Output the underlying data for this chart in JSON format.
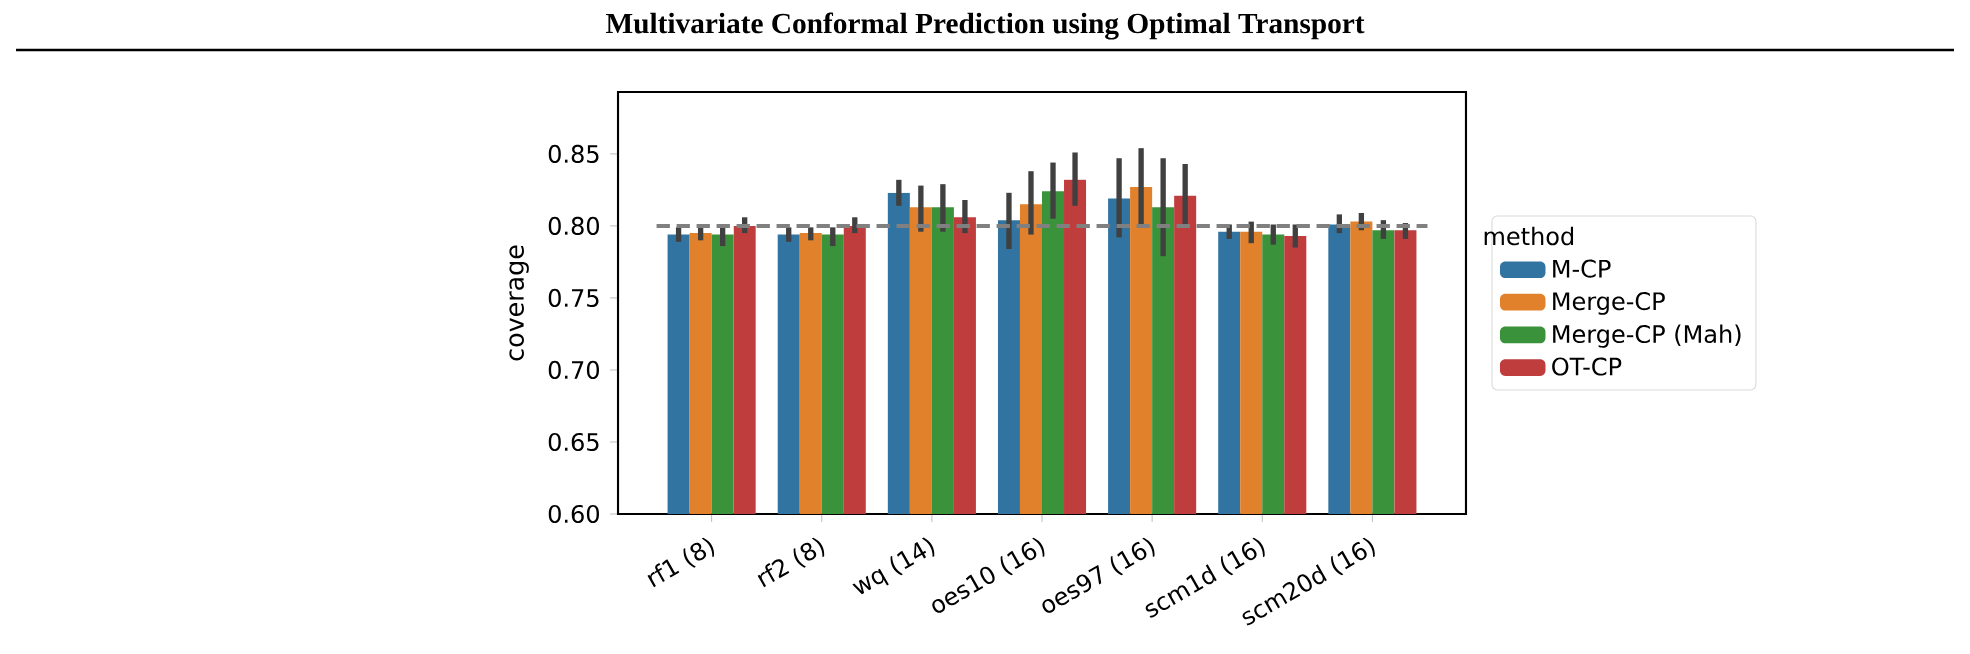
{
  "chart_data": {
    "type": "bar",
    "title": "Multivariate Conformal Prediction using Optimal Transport",
    "ylabel": "coverage",
    "legend_title": "method",
    "legend": "right",
    "categories": [
      "rf1 (8)",
      "rf2 (8)",
      "wq (14)",
      "oes10 (16)",
      "oes97 (16)",
      "scm1d (16)",
      "scm20d (16)"
    ],
    "series": [
      {
        "name": "M-CP",
        "color": "#3274a1",
        "values": [
          0.794,
          0.794,
          0.823,
          0.804,
          0.819,
          0.796,
          0.801
        ],
        "errors": [
          [
            0.789,
            0.799
          ],
          [
            0.789,
            0.799
          ],
          [
            0.814,
            0.832
          ],
          [
            0.784,
            0.823
          ],
          [
            0.792,
            0.847
          ],
          [
            0.791,
            0.801
          ],
          [
            0.795,
            0.808
          ]
        ]
      },
      {
        "name": "Merge-CP",
        "color": "#e1812c",
        "values": [
          0.795,
          0.795,
          0.813,
          0.815,
          0.827,
          0.796,
          0.803
        ],
        "errors": [
          [
            0.79,
            0.799
          ],
          [
            0.79,
            0.799
          ],
          [
            0.796,
            0.828
          ],
          [
            0.794,
            0.838
          ],
          [
            0.801,
            0.854
          ],
          [
            0.788,
            0.803
          ],
          [
            0.797,
            0.809
          ]
        ]
      },
      {
        "name": "Merge-CP (Mah)",
        "color": "#3a923a",
        "values": [
          0.794,
          0.794,
          0.813,
          0.824,
          0.813,
          0.794,
          0.797
        ],
        "errors": [
          [
            0.786,
            0.799
          ],
          [
            0.786,
            0.799
          ],
          [
            0.796,
            0.829
          ],
          [
            0.805,
            0.844
          ],
          [
            0.779,
            0.847
          ],
          [
            0.787,
            0.801
          ],
          [
            0.791,
            0.804
          ]
        ]
      },
      {
        "name": "OT-CP",
        "color": "#c03d3e",
        "values": [
          0.8,
          0.8,
          0.806,
          0.832,
          0.821,
          0.793,
          0.797
        ],
        "errors": [
          [
            0.795,
            0.806
          ],
          [
            0.795,
            0.806
          ],
          [
            0.795,
            0.818
          ],
          [
            0.814,
            0.851
          ],
          [
            0.799,
            0.843
          ],
          [
            0.785,
            0.801
          ],
          [
            0.791,
            0.802
          ]
        ]
      }
    ],
    "ylim": [
      0.6,
      0.893
    ],
    "yticks": [
      {
        "value": 0.6,
        "label": "0.60"
      },
      {
        "value": 0.65,
        "label": "0.65"
      },
      {
        "value": 0.7,
        "label": "0.70"
      },
      {
        "value": 0.75,
        "label": "0.75"
      },
      {
        "value": 0.8,
        "label": "0.80"
      },
      {
        "value": 0.85,
        "label": "0.85"
      }
    ],
    "ref_lines": [
      {
        "axis": "y",
        "value": 0.8,
        "color": "#808080",
        "line_style": "dashed"
      }
    ]
  }
}
